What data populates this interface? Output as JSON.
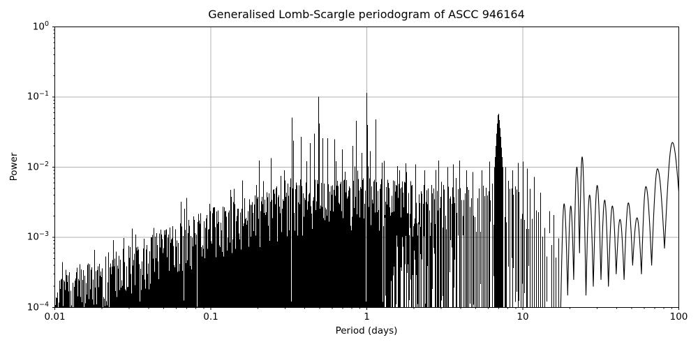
{
  "chart_data": {
    "type": "line",
    "title": "Generalised Lomb-Scargle periodogram of ASCC 946164",
    "xlabel": "Period (days)",
    "ylabel": "Power",
    "xscale": "log",
    "yscale": "log",
    "xlim": [
      0.01,
      100
    ],
    "ylim": [
      0.0001,
      1
    ],
    "grid": "major",
    "legend": "none",
    "colors": {
      "line": "#000000",
      "grid": "#b0b0b0",
      "background": "#ffffff",
      "text": "#000000",
      "spine": "#000000"
    },
    "x_ticks": [
      {
        "value": 0.01,
        "label": "0.01"
      },
      {
        "value": 0.1,
        "label": "0.1"
      },
      {
        "value": 1,
        "label": "1"
      },
      {
        "value": 10,
        "label": "10"
      },
      {
        "value": 100,
        "label": "100"
      }
    ],
    "y_ticks": [
      {
        "value": 1,
        "base": "10",
        "exp": "0"
      },
      {
        "value": 0.1,
        "base": "10",
        "exp": "−1"
      },
      {
        "value": 0.01,
        "base": "10",
        "exp": "−2"
      },
      {
        "value": 0.001,
        "base": "10",
        "exp": "−3"
      },
      {
        "value": 0.0001,
        "base": "10",
        "exp": "−4"
      }
    ],
    "seed": 1337,
    "dense_region": {
      "min_period": 0.01,
      "max_period": 17.0,
      "solid_below_period": 1.2
    },
    "noise_envelope": [
      [
        0.01,
        0.00026
      ],
      [
        0.015,
        0.00039
      ],
      [
        0.022,
        0.00056
      ],
      [
        0.032,
        0.00082
      ],
      [
        0.05,
        0.0013
      ],
      [
        0.07,
        0.0018
      ],
      [
        0.1,
        0.0026
      ],
      [
        0.15,
        0.0034
      ],
      [
        0.22,
        0.0043
      ],
      [
        0.32,
        0.006
      ],
      [
        0.5,
        0.0068
      ],
      [
        0.7,
        0.0066
      ],
      [
        1.0,
        0.0072
      ],
      [
        1.4,
        0.0066
      ],
      [
        2.0,
        0.006
      ],
      [
        3.0,
        0.0056
      ],
      [
        4.5,
        0.0052
      ],
      [
        6.0,
        0.006
      ],
      [
        7.5,
        0.0068
      ],
      [
        9.0,
        0.007
      ],
      [
        10.5,
        0.0074
      ],
      [
        12.0,
        0.0046
      ],
      [
        13.5,
        0.0034
      ],
      [
        15.0,
        0.0026
      ],
      [
        17.0,
        0.002
      ]
    ],
    "major_peaks": [
      [
        0.16,
        0.0065
      ],
      [
        0.205,
        0.0125
      ],
      [
        0.245,
        0.0135
      ],
      [
        0.295,
        0.009
      ],
      [
        0.333,
        0.051
      ],
      [
        0.338,
        0.024
      ],
      [
        0.38,
        0.027
      ],
      [
        0.435,
        0.022
      ],
      [
        0.46,
        0.03
      ],
      [
        0.492,
        0.101
      ],
      [
        0.497,
        0.042
      ],
      [
        0.52,
        0.026
      ],
      [
        0.56,
        0.026
      ],
      [
        0.625,
        0.025
      ],
      [
        0.7,
        0.018
      ],
      [
        0.81,
        0.02
      ],
      [
        0.855,
        0.046
      ],
      [
        0.861,
        0.028
      ],
      [
        0.93,
        0.016
      ],
      [
        0.998,
        0.115
      ],
      [
        1.003,
        0.08
      ],
      [
        1.008,
        0.04
      ],
      [
        1.05,
        0.017
      ],
      [
        1.14,
        0.048
      ],
      [
        1.147,
        0.026
      ],
      [
        1.29,
        0.0123
      ],
      [
        1.62,
        0.009
      ],
      [
        1.8,
        0.0085
      ],
      [
        2.05,
        0.011
      ],
      [
        2.35,
        0.009
      ],
      [
        2.9,
        0.0125
      ],
      [
        3.3,
        0.01
      ],
      [
        3.6,
        0.011
      ],
      [
        3.95,
        0.0125
      ],
      [
        4.35,
        0.009
      ],
      [
        4.8,
        0.0085
      ],
      [
        5.5,
        0.009
      ],
      [
        6.1,
        0.012
      ],
      [
        6.6,
        0.01
      ],
      [
        6.67,
        0.014
      ],
      [
        6.74,
        0.02
      ],
      [
        6.81,
        0.03
      ],
      [
        6.88,
        0.042
      ],
      [
        6.95,
        0.055
      ],
      [
        7.02,
        0.058
      ],
      [
        7.09,
        0.047
      ],
      [
        7.16,
        0.036
      ],
      [
        7.23,
        0.027
      ],
      [
        7.31,
        0.019
      ],
      [
        7.38,
        0.014
      ],
      [
        7.45,
        0.01
      ],
      [
        7.8,
        0.01
      ],
      [
        8.6,
        0.009
      ],
      [
        9.4,
        0.0115
      ],
      [
        10.1,
        0.012
      ],
      [
        10.7,
        0.0095
      ],
      [
        11.8,
        0.007
      ]
    ],
    "tail_lobes": {
      "start_kind": "min",
      "points": [
        [
          17.5,
          0.0001
        ],
        [
          18.4,
          0.003
        ],
        [
          19.4,
          0.00015
        ],
        [
          20.3,
          0.0028
        ],
        [
          21.2,
          0.00025
        ],
        [
          22.2,
          0.01
        ],
        [
          23.1,
          0.0006
        ],
        [
          24.0,
          0.014
        ],
        [
          25.4,
          0.00015
        ],
        [
          26.8,
          0.004
        ],
        [
          28.3,
          0.0002
        ],
        [
          30.0,
          0.0055
        ],
        [
          31.7,
          0.00025
        ],
        [
          33.5,
          0.0034
        ],
        [
          35.4,
          0.0002
        ],
        [
          37.5,
          0.0028
        ],
        [
          39.7,
          0.0003
        ],
        [
          42.0,
          0.0018
        ],
        [
          44.6,
          0.00025
        ],
        [
          47.5,
          0.0031
        ],
        [
          50.6,
          0.0004
        ],
        [
          54.0,
          0.0019
        ],
        [
          57.6,
          0.0003
        ],
        [
          61.5,
          0.0053
        ],
        [
          67.0,
          0.0004
        ],
        [
          73.0,
          0.0095
        ],
        [
          81.0,
          0.0007
        ],
        [
          91.0,
          0.0225
        ],
        [
          100.0,
          0.0045
        ]
      ]
    }
  }
}
